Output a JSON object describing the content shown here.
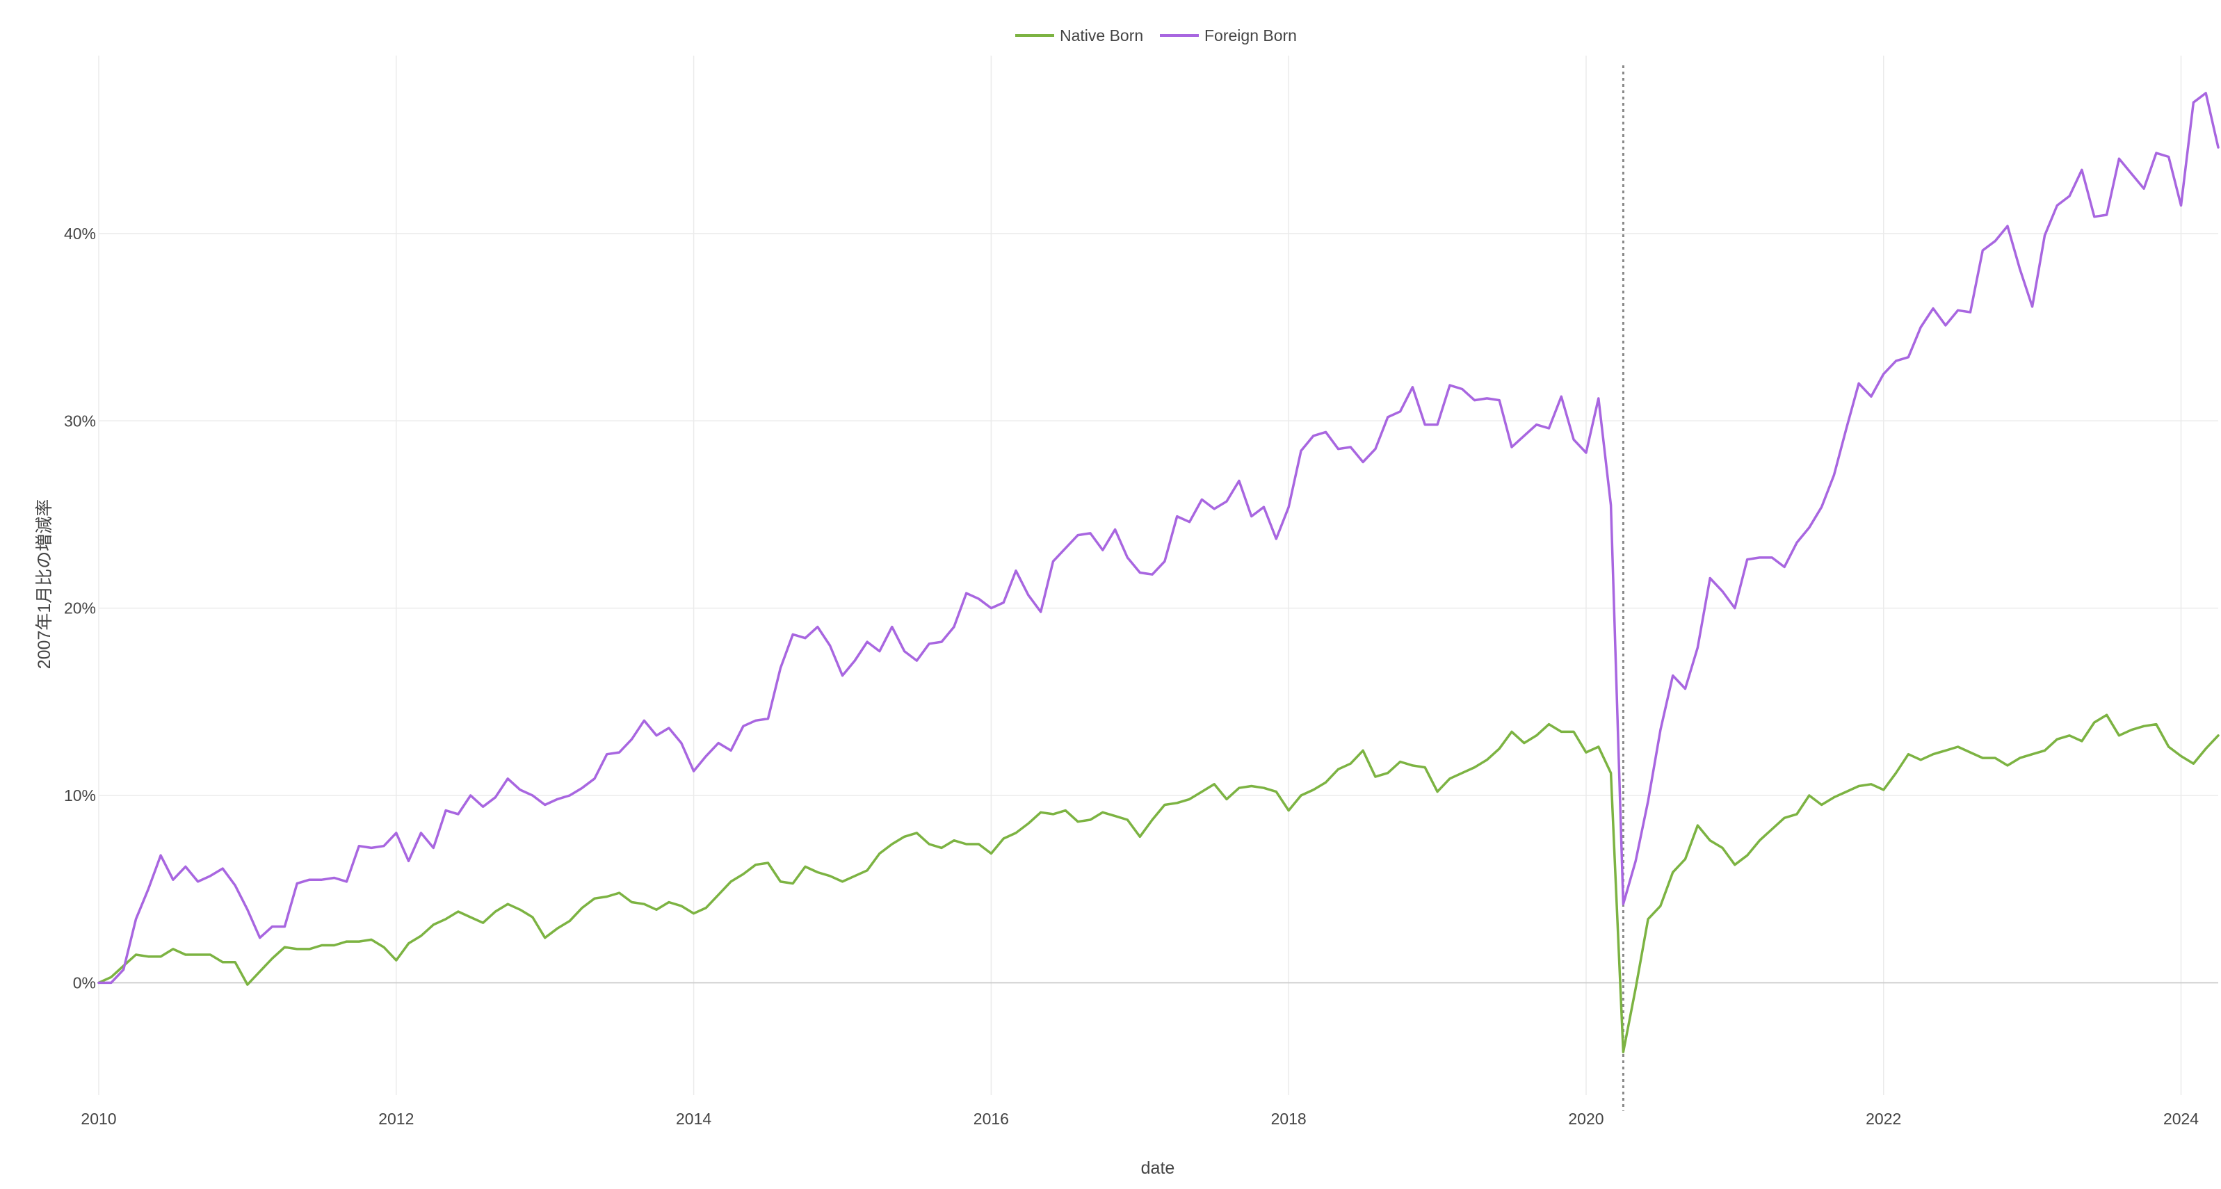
{
  "chart_data": {
    "type": "line",
    "title": "",
    "xlabel": "date",
    "ylabel": "2007年1月比の増減率",
    "xlim": [
      "2010-01",
      "2024-04"
    ],
    "ylim": [
      -0.06,
      0.495
    ],
    "x_ticks": [
      "2010",
      "2012",
      "2014",
      "2016",
      "2018",
      "2020",
      "2022",
      "2024"
    ],
    "y_ticks": [
      "0%",
      "10%",
      "20%",
      "30%",
      "40%"
    ],
    "grid": true,
    "legend_position": "top-center",
    "annotation": {
      "type": "vertical-dotted-line",
      "x": "2020-04"
    },
    "x_start": "2010-01",
    "x_step": "monthly",
    "series": [
      {
        "name": "Native Born",
        "color": "#7cb342",
        "values": [
          0.0,
          0.003,
          0.009,
          0.015,
          0.014,
          0.014,
          0.018,
          0.015,
          0.015,
          0.015,
          0.011,
          0.011,
          -0.001,
          0.006,
          0.013,
          0.019,
          0.018,
          0.018,
          0.02,
          0.02,
          0.022,
          0.022,
          0.023,
          0.019,
          0.012,
          0.021,
          0.025,
          0.031,
          0.034,
          0.038,
          0.035,
          0.032,
          0.038,
          0.042,
          0.039,
          0.035,
          0.024,
          0.029,
          0.033,
          0.04,
          0.045,
          0.046,
          0.048,
          0.043,
          0.042,
          0.039,
          0.043,
          0.041,
          0.037,
          0.04,
          0.047,
          0.054,
          0.058,
          0.063,
          0.064,
          0.054,
          0.053,
          0.062,
          0.059,
          0.057,
          0.054,
          0.057,
          0.06,
          0.069,
          0.074,
          0.078,
          0.08,
          0.074,
          0.072,
          0.076,
          0.074,
          0.074,
          0.069,
          0.077,
          0.08,
          0.085,
          0.091,
          0.09,
          0.092,
          0.086,
          0.087,
          0.091,
          0.089,
          0.087,
          0.078,
          0.087,
          0.095,
          0.096,
          0.098,
          0.102,
          0.106,
          0.098,
          0.104,
          0.105,
          0.104,
          0.102,
          0.092,
          0.1,
          0.103,
          0.107,
          0.114,
          0.117,
          0.124,
          0.11,
          0.112,
          0.118,
          0.116,
          0.115,
          0.102,
          0.109,
          0.112,
          0.115,
          0.119,
          0.125,
          0.134,
          0.128,
          0.132,
          0.138,
          0.134,
          0.134,
          0.123,
          0.126,
          0.112,
          -0.037,
          -0.003,
          0.034,
          0.041,
          0.059,
          0.066,
          0.084,
          0.076,
          0.072,
          0.063,
          0.068,
          0.076,
          0.082,
          0.088,
          0.09,
          0.1,
          0.095,
          0.099,
          0.102,
          0.105,
          0.106,
          0.103,
          0.112,
          0.122,
          0.119,
          0.122,
          0.124,
          0.126,
          0.123,
          0.12,
          0.12,
          0.116,
          0.12,
          0.122,
          0.124,
          0.13,
          0.132,
          0.129,
          0.139,
          0.143,
          0.132,
          0.135,
          0.137,
          0.138,
          0.126,
          0.121,
          0.117,
          0.125,
          0.132
        ]
      },
      {
        "name": "Foreign Born",
        "color": "#a866e0",
        "values": [
          0.0,
          0.0,
          0.007,
          0.034,
          0.05,
          0.068,
          0.055,
          0.062,
          0.054,
          0.057,
          0.061,
          0.052,
          0.039,
          0.024,
          0.03,
          0.03,
          0.053,
          0.055,
          0.055,
          0.056,
          0.054,
          0.073,
          0.072,
          0.073,
          0.08,
          0.065,
          0.08,
          0.072,
          0.092,
          0.09,
          0.1,
          0.094,
          0.099,
          0.109,
          0.103,
          0.1,
          0.095,
          0.098,
          0.1,
          0.104,
          0.109,
          0.122,
          0.123,
          0.13,
          0.14,
          0.132,
          0.136,
          0.128,
          0.113,
          0.121,
          0.128,
          0.124,
          0.137,
          0.14,
          0.141,
          0.168,
          0.186,
          0.184,
          0.19,
          0.18,
          0.164,
          0.172,
          0.182,
          0.177,
          0.19,
          0.177,
          0.172,
          0.181,
          0.182,
          0.19,
          0.208,
          0.205,
          0.2,
          0.203,
          0.22,
          0.207,
          0.198,
          0.225,
          0.232,
          0.239,
          0.24,
          0.231,
          0.242,
          0.227,
          0.219,
          0.218,
          0.225,
          0.249,
          0.246,
          0.258,
          0.253,
          0.257,
          0.268,
          0.249,
          0.254,
          0.237,
          0.254,
          0.284,
          0.292,
          0.294,
          0.285,
          0.286,
          0.278,
          0.285,
          0.302,
          0.305,
          0.318,
          0.298,
          0.298,
          0.319,
          0.317,
          0.311,
          0.312,
          0.311,
          0.286,
          0.292,
          0.298,
          0.296,
          0.313,
          0.29,
          0.283,
          0.312,
          0.255,
          0.042,
          0.065,
          0.097,
          0.135,
          0.164,
          0.157,
          0.179,
          0.216,
          0.209,
          0.2,
          0.226,
          0.227,
          0.227,
          0.222,
          0.235,
          0.243,
          0.254,
          0.271,
          0.296,
          0.32,
          0.313,
          0.325,
          0.332,
          0.334,
          0.35,
          0.36,
          0.351,
          0.359,
          0.358,
          0.391,
          0.396,
          0.404,
          0.381,
          0.361,
          0.399,
          0.415,
          0.42,
          0.434,
          0.409,
          0.41,
          0.44,
          0.432,
          0.424,
          0.443,
          0.441,
          0.415,
          0.47,
          0.475,
          0.446
        ]
      }
    ]
  }
}
